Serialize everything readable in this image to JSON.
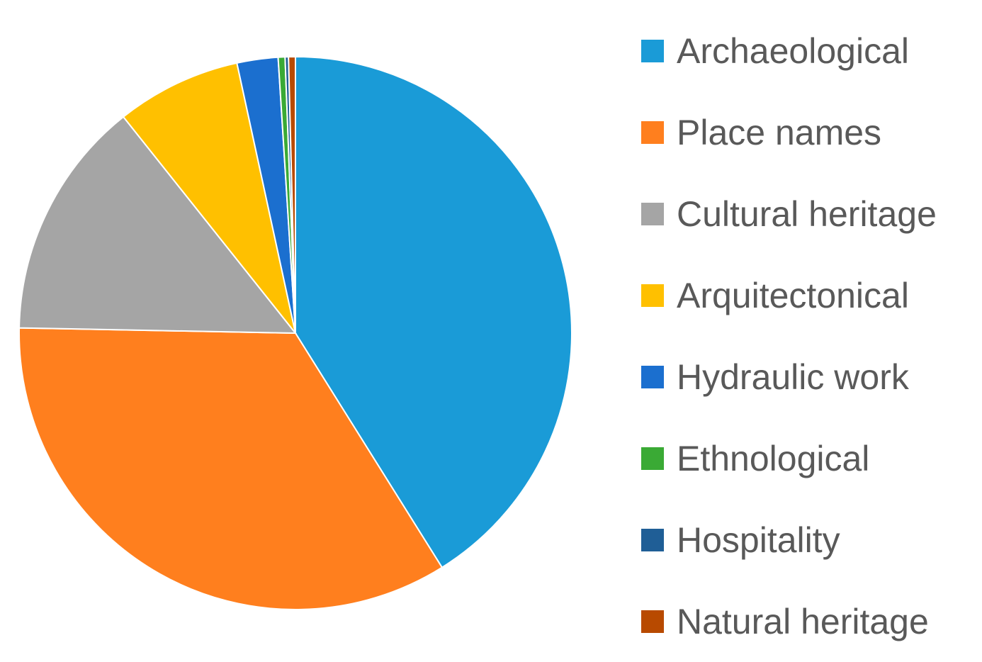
{
  "chart_data": {
    "type": "pie",
    "title": "",
    "start_angle_deg": 0,
    "direction": "clockwise",
    "legend_position": "right",
    "slices": [
      {
        "name": "Archaeological",
        "value": 41.1,
        "color": "#1A9BD7"
      },
      {
        "name": "Place names",
        "value": 34.2,
        "color": "#FF7F1E"
      },
      {
        "name": "Cultural heritage",
        "value": 14.0,
        "color": "#A5A5A5"
      },
      {
        "name": "Arquitectonical",
        "value": 7.3,
        "color": "#FFC000"
      },
      {
        "name": "Hydraulic work",
        "value": 2.4,
        "color": "#1B6FCF"
      },
      {
        "name": "Ethnological",
        "value": 0.4,
        "color": "#3AAA35"
      },
      {
        "name": "Hospitality",
        "value": 0.2,
        "color": "#1F5E96"
      },
      {
        "name": "Natural heritage",
        "value": 0.4,
        "color": "#B84A00"
      }
    ]
  }
}
